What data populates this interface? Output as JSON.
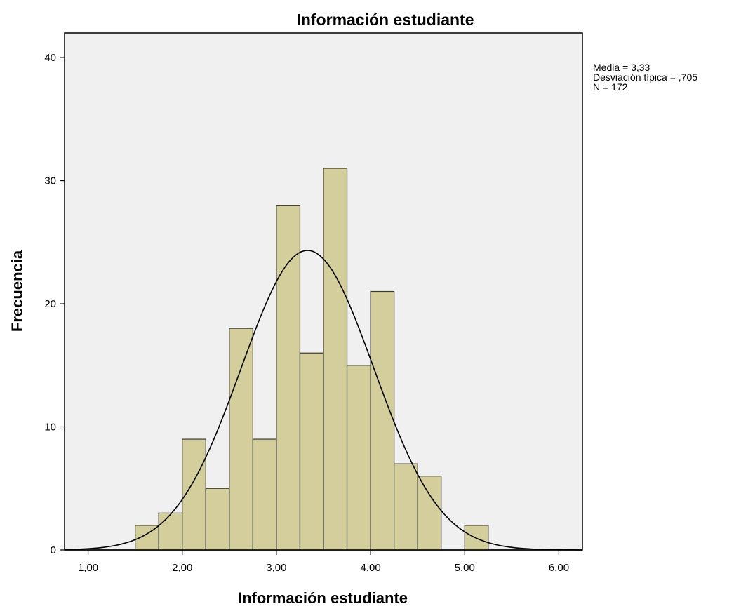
{
  "chart_data": {
    "type": "bar",
    "title": "Información estudiante",
    "xlabel": "Información estudiante",
    "ylabel": "Frecuencia",
    "xlim": [
      0.75,
      6.25
    ],
    "ylim": [
      0,
      42
    ],
    "x_ticks": [
      1,
      2,
      3,
      4,
      5,
      6
    ],
    "x_tick_labels": [
      "1,00",
      "2,00",
      "3,00",
      "4,00",
      "5,00",
      "6,00"
    ],
    "y_ticks": [
      0,
      10,
      20,
      30,
      40
    ],
    "y_tick_labels": [
      "0",
      "10",
      "20",
      "30",
      "40"
    ],
    "bin_width": 0.25,
    "bins": [
      {
        "start": 1.5,
        "count": 2
      },
      {
        "start": 1.75,
        "count": 3
      },
      {
        "start": 2.0,
        "count": 9
      },
      {
        "start": 2.25,
        "count": 5
      },
      {
        "start": 2.5,
        "count": 18
      },
      {
        "start": 2.75,
        "count": 9
      },
      {
        "start": 3.0,
        "count": 28
      },
      {
        "start": 3.25,
        "count": 16
      },
      {
        "start": 3.5,
        "count": 31
      },
      {
        "start": 3.75,
        "count": 15
      },
      {
        "start": 4.0,
        "count": 21
      },
      {
        "start": 4.25,
        "count": 7
      },
      {
        "start": 4.5,
        "count": 6
      },
      {
        "start": 5.0,
        "count": 2
      }
    ],
    "normal_curve": {
      "mean": 3.33,
      "sd": 0.705,
      "n": 172
    },
    "grid": false,
    "legend": "none",
    "colors": {
      "bar_fill": "#d3ce9b",
      "bar_stroke": "#3b3b2b",
      "plot_bg": "#f0f0f0",
      "curve": "#000000"
    }
  },
  "stats": {
    "media": "Media = 3,33",
    "desviacion": "Desviación típica = ,705",
    "n": "N = 172"
  }
}
